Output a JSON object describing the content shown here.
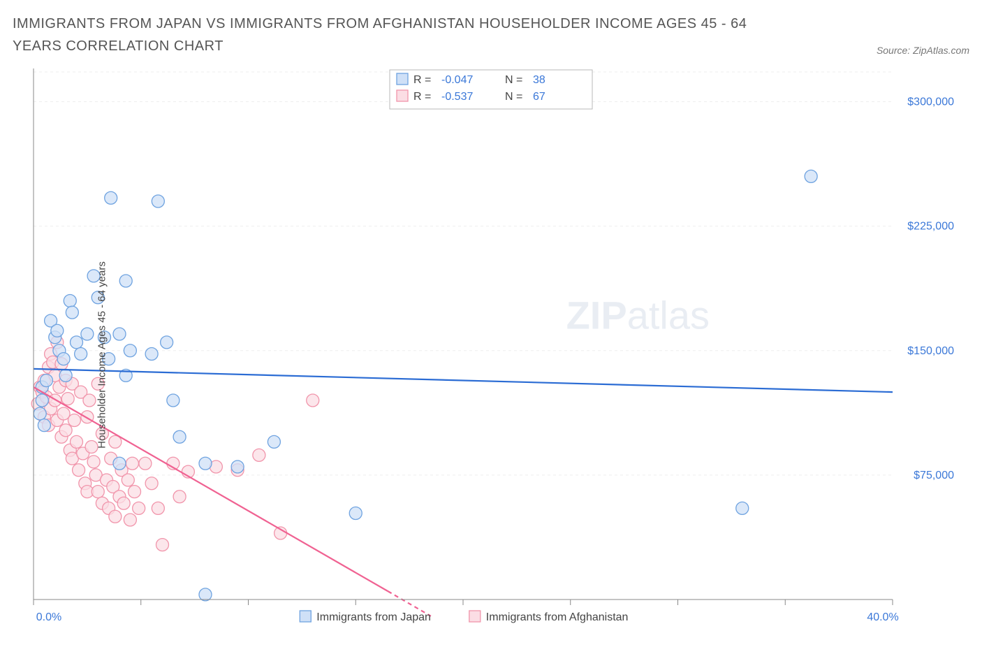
{
  "title": "IMMIGRANTS FROM JAPAN VS IMMIGRANTS FROM AFGHANISTAN HOUSEHOLDER INCOME AGES 45 - 64 YEARS CORRELATION CHART",
  "source": "Source: ZipAtlas.com",
  "ylabel": "Householder Income Ages 45 - 64 years",
  "watermark_bold": "ZIP",
  "watermark_rest": "atlas",
  "chart": {
    "type": "scatter",
    "xlim": [
      0,
      40
    ],
    "ylim": [
      0,
      320000
    ],
    "xticks": [
      0,
      5,
      10,
      15,
      20,
      25,
      30,
      35,
      40
    ],
    "xtick_labels": {
      "0": "0.0%",
      "40": "40.0%"
    },
    "yticks": [
      75000,
      150000,
      225000,
      300000
    ],
    "ytick_labels": [
      "$75,000",
      "$150,000",
      "$225,000",
      "$300,000"
    ],
    "grid_color": "#eeeeee",
    "axis_color": "#888888",
    "background_color": "#ffffff",
    "marker_radius": 9,
    "marker_stroke": 1.3,
    "line_width": 2.2,
    "series": [
      {
        "name": "Immigrants from Japan",
        "color_fill": "#cfe0f7",
        "color_stroke": "#6fa3e0",
        "line_color": "#2b6cd4",
        "R": "-0.047",
        "N": "38",
        "trend": {
          "x1": 0,
          "y1": 139000,
          "x2": 40,
          "y2": 125000
        },
        "points": [
          [
            0.3,
            112000
          ],
          [
            0.4,
            120000
          ],
          [
            0.5,
            105000
          ],
          [
            0.4,
            128000
          ],
          [
            0.6,
            132000
          ],
          [
            0.8,
            168000
          ],
          [
            1.0,
            158000
          ],
          [
            1.1,
            162000
          ],
          [
            1.2,
            150000
          ],
          [
            1.4,
            145000
          ],
          [
            1.5,
            135000
          ],
          [
            1.7,
            180000
          ],
          [
            1.8,
            173000
          ],
          [
            2.0,
            155000
          ],
          [
            2.2,
            148000
          ],
          [
            2.5,
            160000
          ],
          [
            2.8,
            195000
          ],
          [
            3.0,
            182000
          ],
          [
            3.3,
            158000
          ],
          [
            3.5,
            145000
          ],
          [
            3.6,
            242000
          ],
          [
            4.0,
            160000
          ],
          [
            4.3,
            135000
          ],
          [
            4.5,
            150000
          ],
          [
            4.3,
            192000
          ],
          [
            4.0,
            82000
          ],
          [
            5.5,
            148000
          ],
          [
            5.8,
            240000
          ],
          [
            6.2,
            155000
          ],
          [
            6.5,
            120000
          ],
          [
            6.8,
            98000
          ],
          [
            8.0,
            82000
          ],
          [
            8.0,
            3000
          ],
          [
            9.5,
            80000
          ],
          [
            11.2,
            95000
          ],
          [
            15.0,
            52000
          ],
          [
            33.0,
            55000
          ],
          [
            36.2,
            255000
          ]
        ]
      },
      {
        "name": "Immigrants from Afghanistan",
        "color_fill": "#fbdde4",
        "color_stroke": "#f195ab",
        "line_color": "#f06292",
        "R": "-0.537",
        "N": "67",
        "trend_solid": {
          "x1": 0,
          "y1": 128000,
          "x2": 16.5,
          "y2": 5000
        },
        "trend_dashed": {
          "x1": 16.5,
          "y1": 5000,
          "x2": 18.5,
          "y2": -10000
        },
        "points": [
          [
            0.2,
            118000
          ],
          [
            0.3,
            128000
          ],
          [
            0.4,
            125000
          ],
          [
            0.5,
            110000
          ],
          [
            0.5,
            132000
          ],
          [
            0.6,
            122000
          ],
          [
            0.7,
            140000
          ],
          [
            0.7,
            105000
          ],
          [
            0.8,
            148000
          ],
          [
            0.8,
            115000
          ],
          [
            0.9,
            143000
          ],
          [
            1.0,
            135000
          ],
          [
            1.0,
            120000
          ],
          [
            1.1,
            155000
          ],
          [
            1.1,
            108000
          ],
          [
            1.2,
            128000
          ],
          [
            1.3,
            142000
          ],
          [
            1.3,
            98000
          ],
          [
            1.4,
            112000
          ],
          [
            1.5,
            102000
          ],
          [
            1.5,
            132000
          ],
          [
            1.6,
            121000
          ],
          [
            1.7,
            90000
          ],
          [
            1.8,
            130000
          ],
          [
            1.8,
            85000
          ],
          [
            1.9,
            108000
          ],
          [
            2.0,
            95000
          ],
          [
            2.1,
            78000
          ],
          [
            2.2,
            125000
          ],
          [
            2.3,
            88000
          ],
          [
            2.4,
            70000
          ],
          [
            2.5,
            110000
          ],
          [
            2.5,
            65000
          ],
          [
            2.6,
            120000
          ],
          [
            2.7,
            92000
          ],
          [
            2.8,
            83000
          ],
          [
            2.9,
            75000
          ],
          [
            3.0,
            130000
          ],
          [
            3.0,
            65000
          ],
          [
            3.2,
            58000
          ],
          [
            3.2,
            100000
          ],
          [
            3.4,
            72000
          ],
          [
            3.5,
            55000
          ],
          [
            3.6,
            85000
          ],
          [
            3.7,
            68000
          ],
          [
            3.8,
            95000
          ],
          [
            3.8,
            50000
          ],
          [
            4.0,
            62000
          ],
          [
            4.1,
            78000
          ],
          [
            4.2,
            58000
          ],
          [
            4.4,
            72000
          ],
          [
            4.5,
            48000
          ],
          [
            4.6,
            82000
          ],
          [
            4.7,
            65000
          ],
          [
            4.9,
            55000
          ],
          [
            5.2,
            82000
          ],
          [
            5.5,
            70000
          ],
          [
            5.8,
            55000
          ],
          [
            6.0,
            33000
          ],
          [
            6.5,
            82000
          ],
          [
            6.8,
            62000
          ],
          [
            7.2,
            77000
          ],
          [
            8.5,
            80000
          ],
          [
            9.5,
            78000
          ],
          [
            10.5,
            87000
          ],
          [
            11.5,
            40000
          ],
          [
            13.0,
            120000
          ]
        ]
      }
    ],
    "rn_legend": {
      "labels": [
        "R =",
        "N ="
      ],
      "value_colors": {
        "R": "#3b78d8",
        "N": "#3b78d8",
        "label": "#444444"
      }
    },
    "bottom_legend": true
  }
}
